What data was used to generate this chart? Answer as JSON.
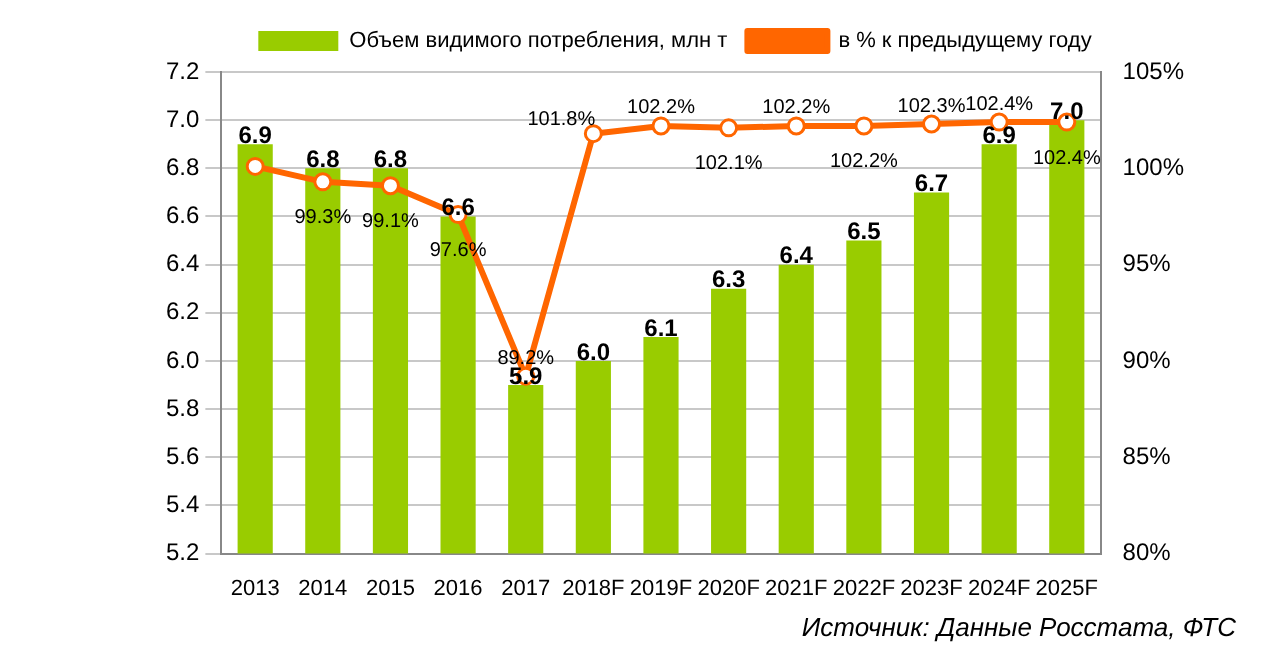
{
  "chart_data": {
    "type": "bar",
    "categories": [
      "2013",
      "2014",
      "2015",
      "2016",
      "2017",
      "2018F",
      "2019F",
      "2020F",
      "2021F",
      "2022F",
      "2023F",
      "2024F",
      "2025F"
    ],
    "series": [
      {
        "name": "Объем видимого потребления, млн т",
        "color": "#99cc00",
        "values": [
          6.9,
          6.8,
          6.8,
          6.6,
          5.9,
          6.0,
          6.1,
          6.3,
          6.4,
          6.5,
          6.7,
          6.9,
          7.0
        ],
        "value_labels": [
          "6.9",
          "6.8",
          "6.8",
          "6.6",
          "5.9",
          "6.0",
          "6.1",
          "6.3",
          "6.4",
          "6.5",
          "6.7",
          "6.9",
          "7.0"
        ]
      },
      {
        "name": "в % к предыдущему году",
        "type": "line",
        "axis": "y2",
        "color": "#ff6600",
        "marker": "circle",
        "values": [
          100.1,
          99.3,
          99.1,
          97.6,
          89.2,
          101.8,
          102.2,
          102.1,
          102.2,
          102.2,
          102.3,
          102.4,
          102.4
        ],
        "value_labels": [
          null,
          "99.3%",
          "99.1%",
          "97.6%",
          "89.2%",
          "101.8%",
          "102.2%",
          "102.1%",
          "102.2%",
          "102.2%",
          "102.3%",
          "102.4%",
          "102.4%"
        ]
      }
    ],
    "ylim": [
      5.2,
      7.2
    ],
    "yticks": [
      5.2,
      5.4,
      5.6,
      5.8,
      {
        "value": 6.0,
        "label": "6.0"
      },
      6.2,
      6.4,
      6.6,
      6.8,
      {
        "value": 7.0,
        "label": "7.0"
      },
      7.2
    ],
    "y2lim": [
      80,
      105
    ],
    "y2ticks": [
      {
        "value": 80,
        "label": "80%"
      },
      {
        "value": 85,
        "label": "85%"
      },
      {
        "value": 90,
        "label": "90%"
      },
      {
        "value": 95,
        "label": "95%"
      },
      {
        "value": 100,
        "label": "100%"
      },
      {
        "value": 105,
        "label": "105%"
      }
    ],
    "grid": "y",
    "legend": "top",
    "annotations": [
      "Источник: Данные Росстата, ФТС"
    ]
  }
}
